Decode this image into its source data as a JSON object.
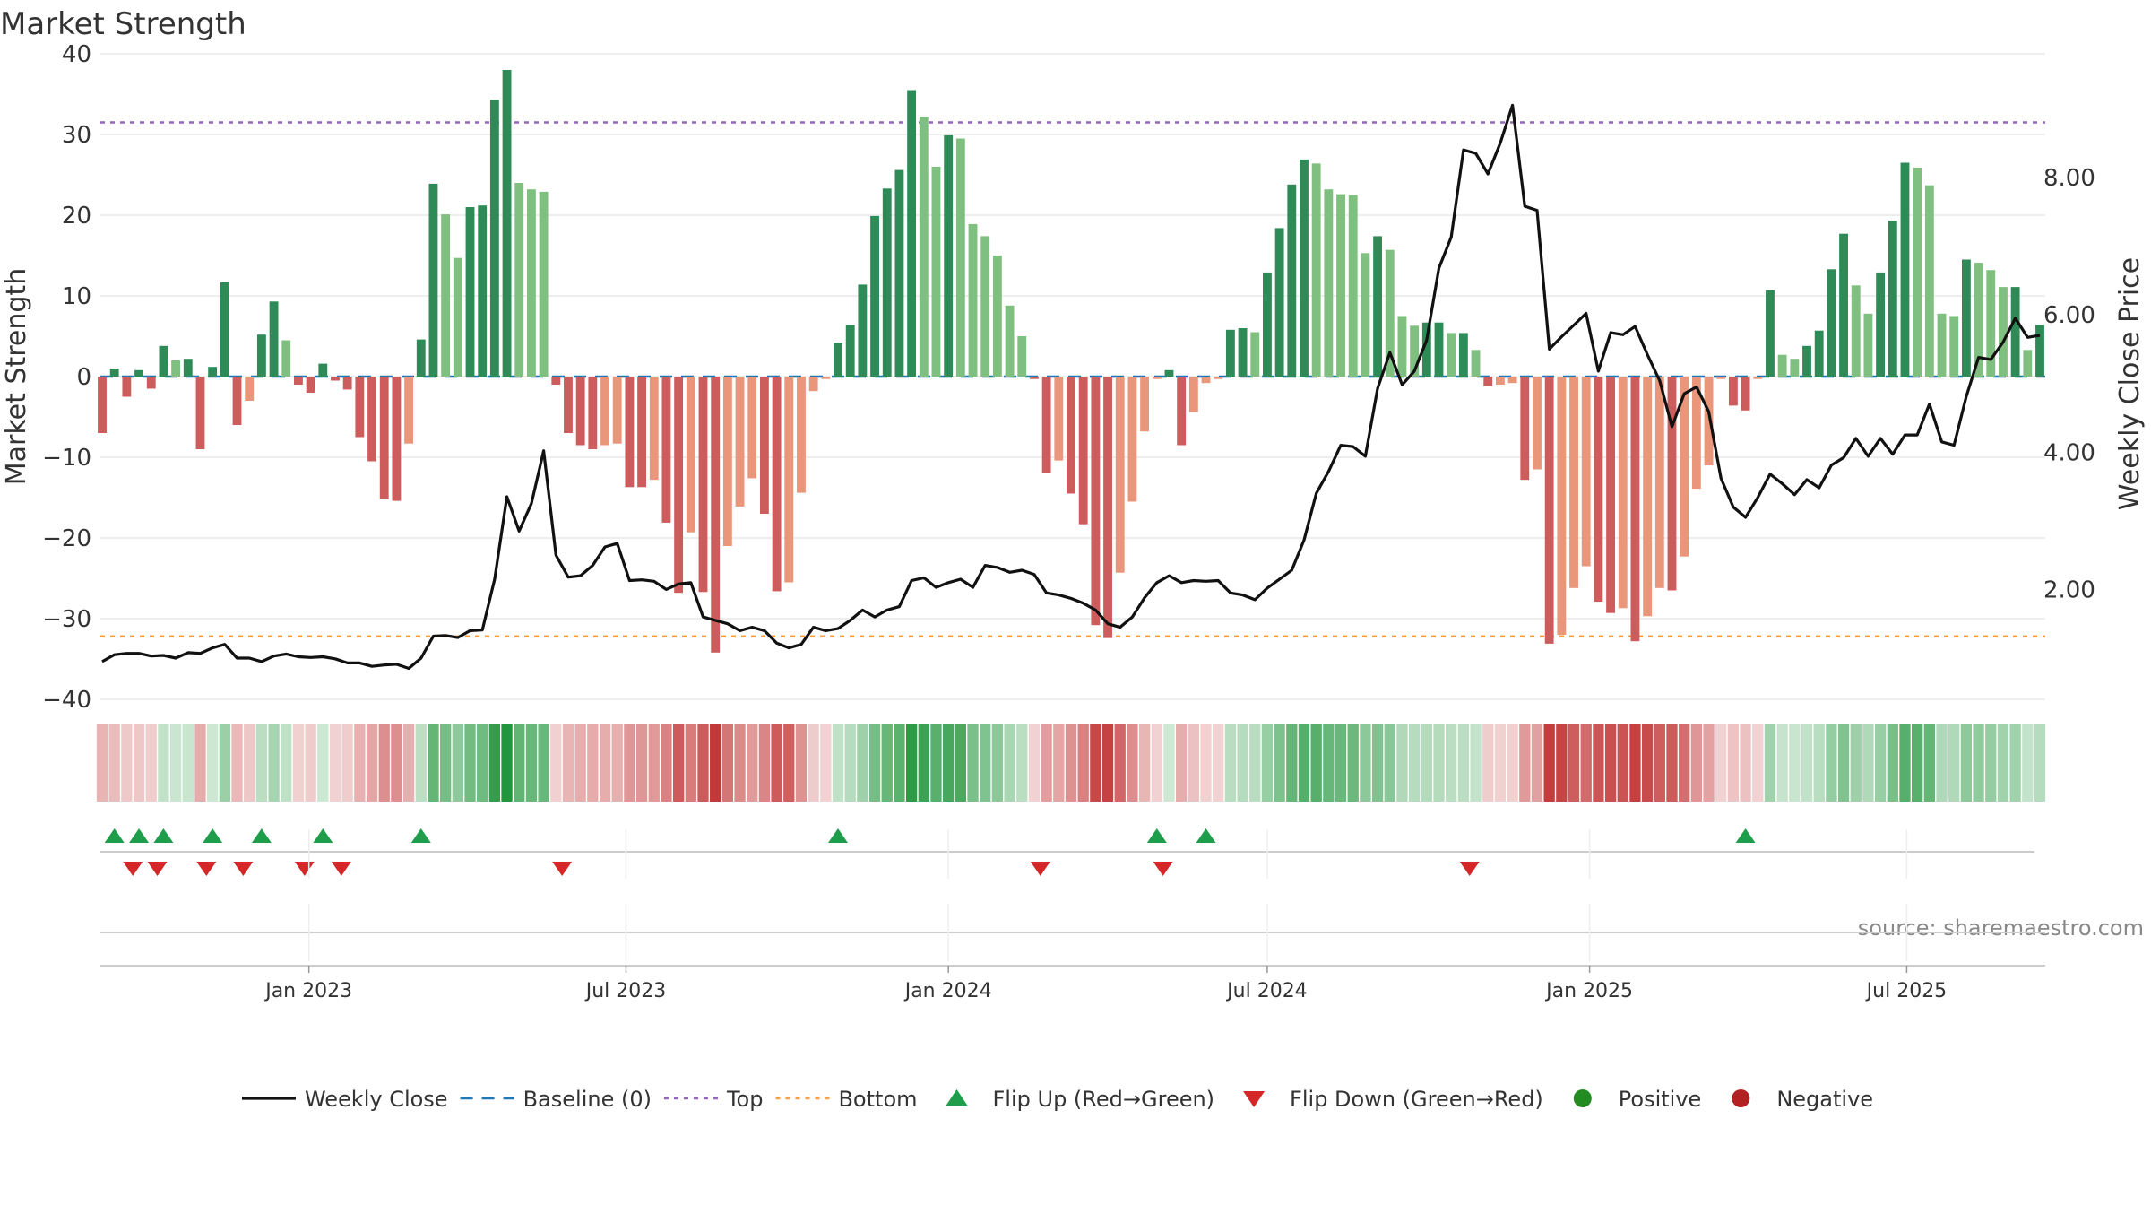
{
  "chart_data": {
    "type": "bar",
    "title": "Market Strength",
    "ylabel_left": "Market Strength",
    "ylabel_right": "Weekly Close Price",
    "ylim_left": [
      -40,
      40
    ],
    "yticks_left": [
      "40",
      "30",
      "20",
      "10",
      "0",
      "−10",
      "−20",
      "−30",
      "−40"
    ],
    "ylim_right": [
      0.4,
      9.8
    ],
    "yticks_right": [
      "8.00",
      "6.00",
      "4.00",
      "2.00"
    ],
    "top_level": 31.5,
    "bottom_level": -32.2,
    "x_start": "2022-09-05",
    "x_step_weeks": 1,
    "xticks": [
      "Jan 2023",
      "Jul 2023",
      "Jan 2024",
      "Jul 2024",
      "Jan 2025",
      "Jul 2025"
    ],
    "strength": [
      -7,
      1,
      -2.5,
      0.8,
      -1.5,
      3.8,
      2,
      2.2,
      -9,
      1.2,
      11.7,
      -6,
      -3,
      5.2,
      9.3,
      4.5,
      -1,
      -2,
      1.6,
      -0.5,
      -1.6,
      -7.5,
      -10.5,
      -15.2,
      -15.4,
      -8.3,
      4.6,
      23.9,
      20.1,
      14.7,
      21,
      21.2,
      34.3,
      38,
      24,
      23.2,
      22.9,
      -1,
      -7,
      -8.5,
      -9,
      -8.5,
      -8.3,
      -13.7,
      -13.7,
      -12.8,
      -18.1,
      -26.8,
      -19.3,
      -26.7,
      -34.2,
      -21,
      -16.1,
      -12.6,
      -17,
      -26.6,
      -25.5,
      -14.4,
      -1.8,
      -0.3,
      4.2,
      6.4,
      11.4,
      19.9,
      23.3,
      25.6,
      35.5,
      32.2,
      26,
      29.9,
      29.5,
      18.9,
      17.4,
      15,
      8.8,
      5,
      -0.3,
      -12,
      -10.4,
      -14.5,
      -18.3,
      -30.8,
      -32.4,
      -24.3,
      -15.5,
      -6.8,
      -0.3,
      0.8,
      -8.5,
      -4.4,
      -0.8,
      -0.3,
      5.8,
      6,
      5.5,
      12.9,
      18.4,
      23.8,
      26.9,
      26.4,
      23.2,
      22.6,
      22.5,
      15.3,
      17.4,
      15.7,
      7.5,
      6.3,
      6.7,
      6.7,
      5.4,
      5.4,
      3.3,
      -1.2,
      -1,
      -0.8,
      -12.8,
      -11.5,
      -33.1,
      -32,
      -26.2,
      -23.5,
      -27.9,
      -29.3,
      -28.7,
      -32.8,
      -29.7,
      -26.2,
      -26.5,
      -22.3,
      -13.9,
      -11,
      -0.3,
      -3.6,
      -4.2,
      -0.3,
      10.7,
      2.7,
      2.2,
      3.8,
      5.7,
      13.3,
      17.7,
      11.3,
      7.8,
      12.9,
      19.3,
      26.5,
      25.9,
      23.7,
      7.8,
      7.5,
      14.5,
      14.1,
      13.2,
      11.1,
      11.1,
      3.3,
      6.4
    ],
    "weekly_close": [
      0.95,
      1.05,
      1.07,
      1.07,
      1.03,
      1.04,
      1,
      1.08,
      1.07,
      1.15,
      1.2,
      1,
      1,
      0.95,
      1.03,
      1.06,
      1.02,
      1.01,
      1.02,
      0.99,
      0.93,
      0.93,
      0.88,
      0.9,
      0.91,
      0.85,
      1,
      1.32,
      1.33,
      1.3,
      1.4,
      1.41,
      2.15,
      3.35,
      2.85,
      3.25,
      4.02,
      2.5,
      2.18,
      2.2,
      2.35,
      2.62,
      2.67,
      2.13,
      2.14,
      2.12,
      2,
      2.08,
      2.1,
      1.6,
      1.55,
      1.5,
      1.4,
      1.45,
      1.4,
      1.22,
      1.15,
      1.2,
      1.45,
      1.4,
      1.43,
      1.55,
      1.7,
      1.6,
      1.7,
      1.75,
      2.13,
      2.17,
      2.03,
      2.1,
      2.15,
      2.03,
      2.35,
      2.32,
      2.25,
      2.28,
      2.22,
      1.95,
      1.92,
      1.87,
      1.8,
      1.7,
      1.5,
      1.45,
      1.6,
      1.88,
      2.1,
      2.2,
      2.1,
      2.13,
      2.12,
      2.13,
      1.95,
      1.92,
      1.85,
      2.02,
      2.15,
      2.28,
      2.72,
      3.4,
      3.72,
      4.1,
      4.08,
      3.94,
      4.93,
      5.45,
      4.98,
      5.18,
      5.63,
      6.68,
      7.13,
      8.4,
      8.35,
      8.05,
      8.5,
      9.05,
      7.58,
      7.52,
      5.5,
      5.68,
      5.85,
      6.02,
      5.18,
      5.74,
      5.71,
      5.83,
      5.42,
      5.04,
      4.37,
      4.85,
      4.95,
      4.59,
      3.62,
      3.2,
      3.05,
      3.34,
      3.68,
      3.54,
      3.38,
      3.6,
      3.48,
      3.81,
      3.92,
      4.2,
      3.94,
      4.2,
      3.97,
      4.25,
      4.25,
      4.7,
      4.15,
      4.1,
      4.81,
      5.38,
      5.35,
      5.6,
      5.95,
      5.67,
      5.7
    ],
    "signal_strip": [
      -7,
      -5,
      -2.5,
      -3,
      -1.5,
      3.8,
      2,
      2.2,
      -9,
      1.2,
      11.7,
      -6,
      -3,
      5.2,
      9.3,
      4.5,
      -1,
      -2,
      1.6,
      -0.5,
      -1.6,
      -7.5,
      -10.5,
      -15.2,
      -15.4,
      -8.3,
      4.6,
      23.9,
      20.1,
      14.7,
      21,
      21.2,
      34.3,
      38,
      24,
      23.2,
      22.9,
      -1,
      -7,
      -8.5,
      -9,
      -8.5,
      -8.3,
      -13.7,
      -13.7,
      -12.8,
      -18.1,
      -26.8,
      -19.3,
      -26.7,
      -34.2,
      -21,
      -16.1,
      -12.6,
      -17,
      -26.6,
      -25.5,
      -14.4,
      -1.8,
      -0.3,
      4.2,
      6.4,
      11.4,
      19.9,
      23.3,
      25.6,
      35.5,
      32.2,
      26,
      29.9,
      29.5,
      18.9,
      17.4,
      15,
      8.8,
      5,
      -0.3,
      -12,
      -10.4,
      -14.5,
      -18.3,
      -30.8,
      -32.4,
      -24.3,
      -15.5,
      -6.8,
      -0.3,
      0.8,
      -8.5,
      -4.4,
      -0.8,
      -0.3,
      5.8,
      6,
      5.5,
      12.9,
      18.4,
      23.8,
      26.9,
      26.4,
      23.2,
      22.6,
      22.5,
      15.3,
      17.4,
      15.7,
      7.5,
      6.3,
      6.7,
      6.7,
      5.4,
      5.4,
      3.3,
      -1.2,
      -1,
      -0.8,
      -12.8,
      -11.5,
      -33.1,
      -32,
      -26.2,
      -23.5,
      -27.9,
      -29.3,
      -28.7,
      -32.8,
      -29.7,
      -26.2,
      -26.5,
      -22.3,
      -13.9,
      -11,
      -0.3,
      -3.6,
      -4.2,
      -0.3,
      10.7,
      2.7,
      2.2,
      3.8,
      5.7,
      13.3,
      17.7,
      11.3,
      7.8,
      12.9,
      19.3,
      26.5,
      25.9,
      23.7,
      7.8,
      7.5,
      14.5,
      14.1,
      13.2,
      11.1,
      11.1,
      3.3,
      6.4
    ],
    "flip_up_weeks": [
      1,
      3,
      5,
      9,
      13,
      18,
      26,
      60,
      86,
      90,
      134
    ],
    "flip_down_weeks": [
      2,
      4,
      8,
      11,
      16,
      19,
      37,
      76,
      86,
      111
    ],
    "legend": [
      {
        "label": "Weekly Close",
        "kind": "line"
      },
      {
        "label": "Baseline (0)",
        "kind": "dash"
      },
      {
        "label": "Top",
        "kind": "dot-purple"
      },
      {
        "label": "Bottom",
        "kind": "dot-orange"
      },
      {
        "label": "Flip Up (Red→Green)",
        "kind": "tri-up"
      },
      {
        "label": "Flip Down (Green→Red)",
        "kind": "tri-down"
      },
      {
        "label": "Positive",
        "kind": "circle-green"
      },
      {
        "label": "Negative",
        "kind": "circle-red"
      }
    ],
    "source": "source: sharemaestro.com"
  },
  "colors": {
    "pos_strong": "#2e8b57",
    "pos_weak": "#7fbf7f",
    "neg_strong": "#cd5c5c",
    "neg_weak": "#e9967a",
    "close_line": "#111111",
    "baseline": "#1f77b4",
    "top": "#9467bd",
    "bottom": "#ff9f43",
    "flip_up": "#1e9e4a",
    "flip_down": "#d62728",
    "positive_dot": "#228b22",
    "negative_dot": "#b22222"
  }
}
